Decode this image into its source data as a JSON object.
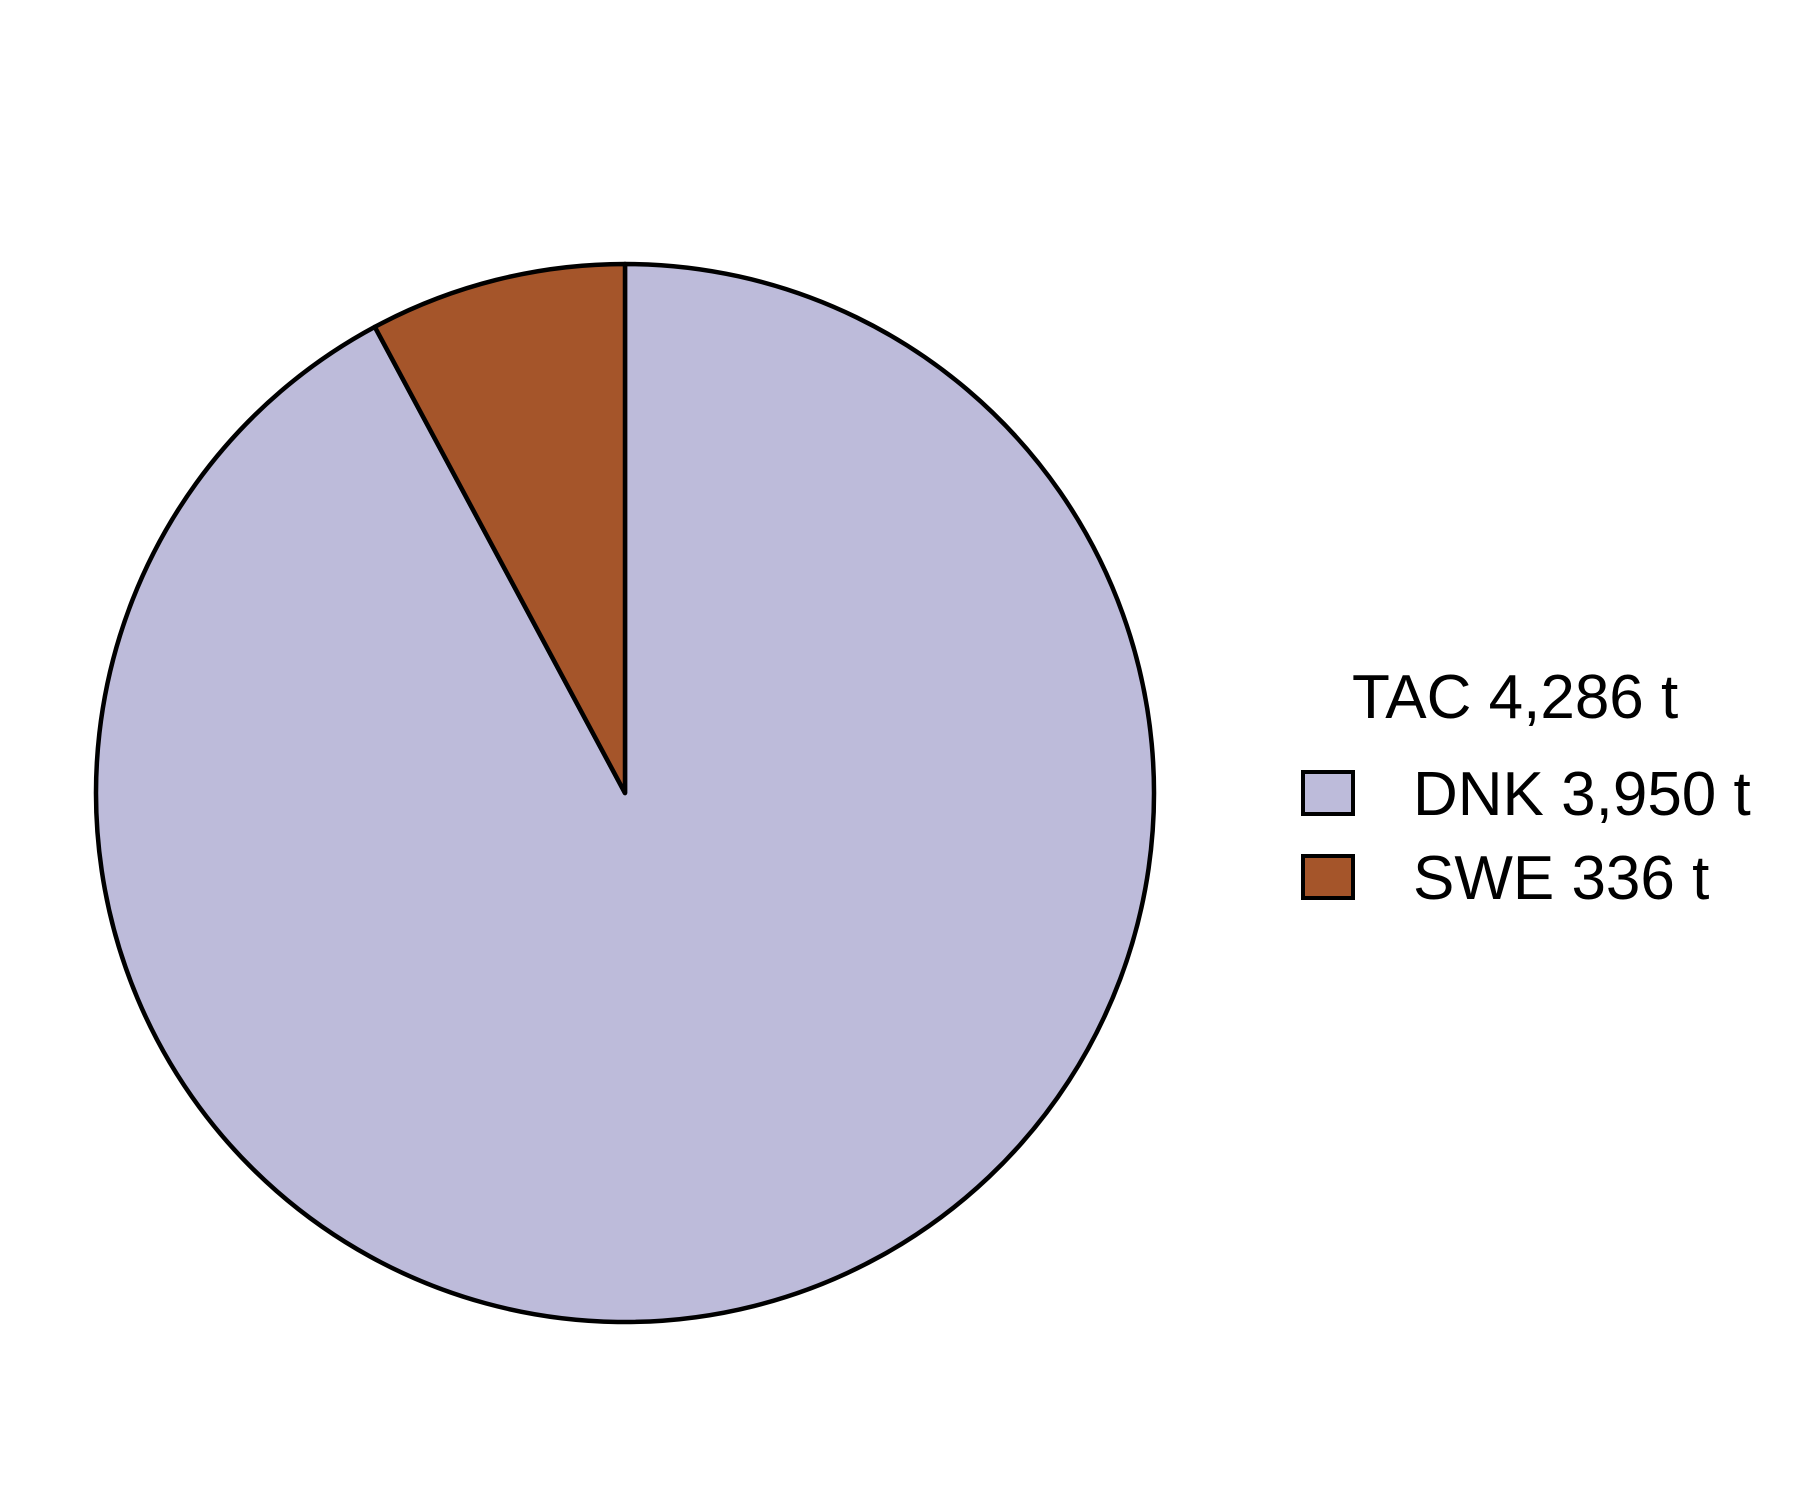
{
  "chart_data": {
    "type": "pie",
    "legend_title": "TAC 4,286 t",
    "legend_position": "right",
    "slices": [
      {
        "label": "DNK 3,950 t",
        "value": 3950,
        "color": "#bdbbda"
      },
      {
        "label": "SWE 336 t",
        "value": 336,
        "color": "#a5552a"
      }
    ],
    "start_angle_deg": 0,
    "direction": "clockwise",
    "outline_color": "#000000"
  }
}
